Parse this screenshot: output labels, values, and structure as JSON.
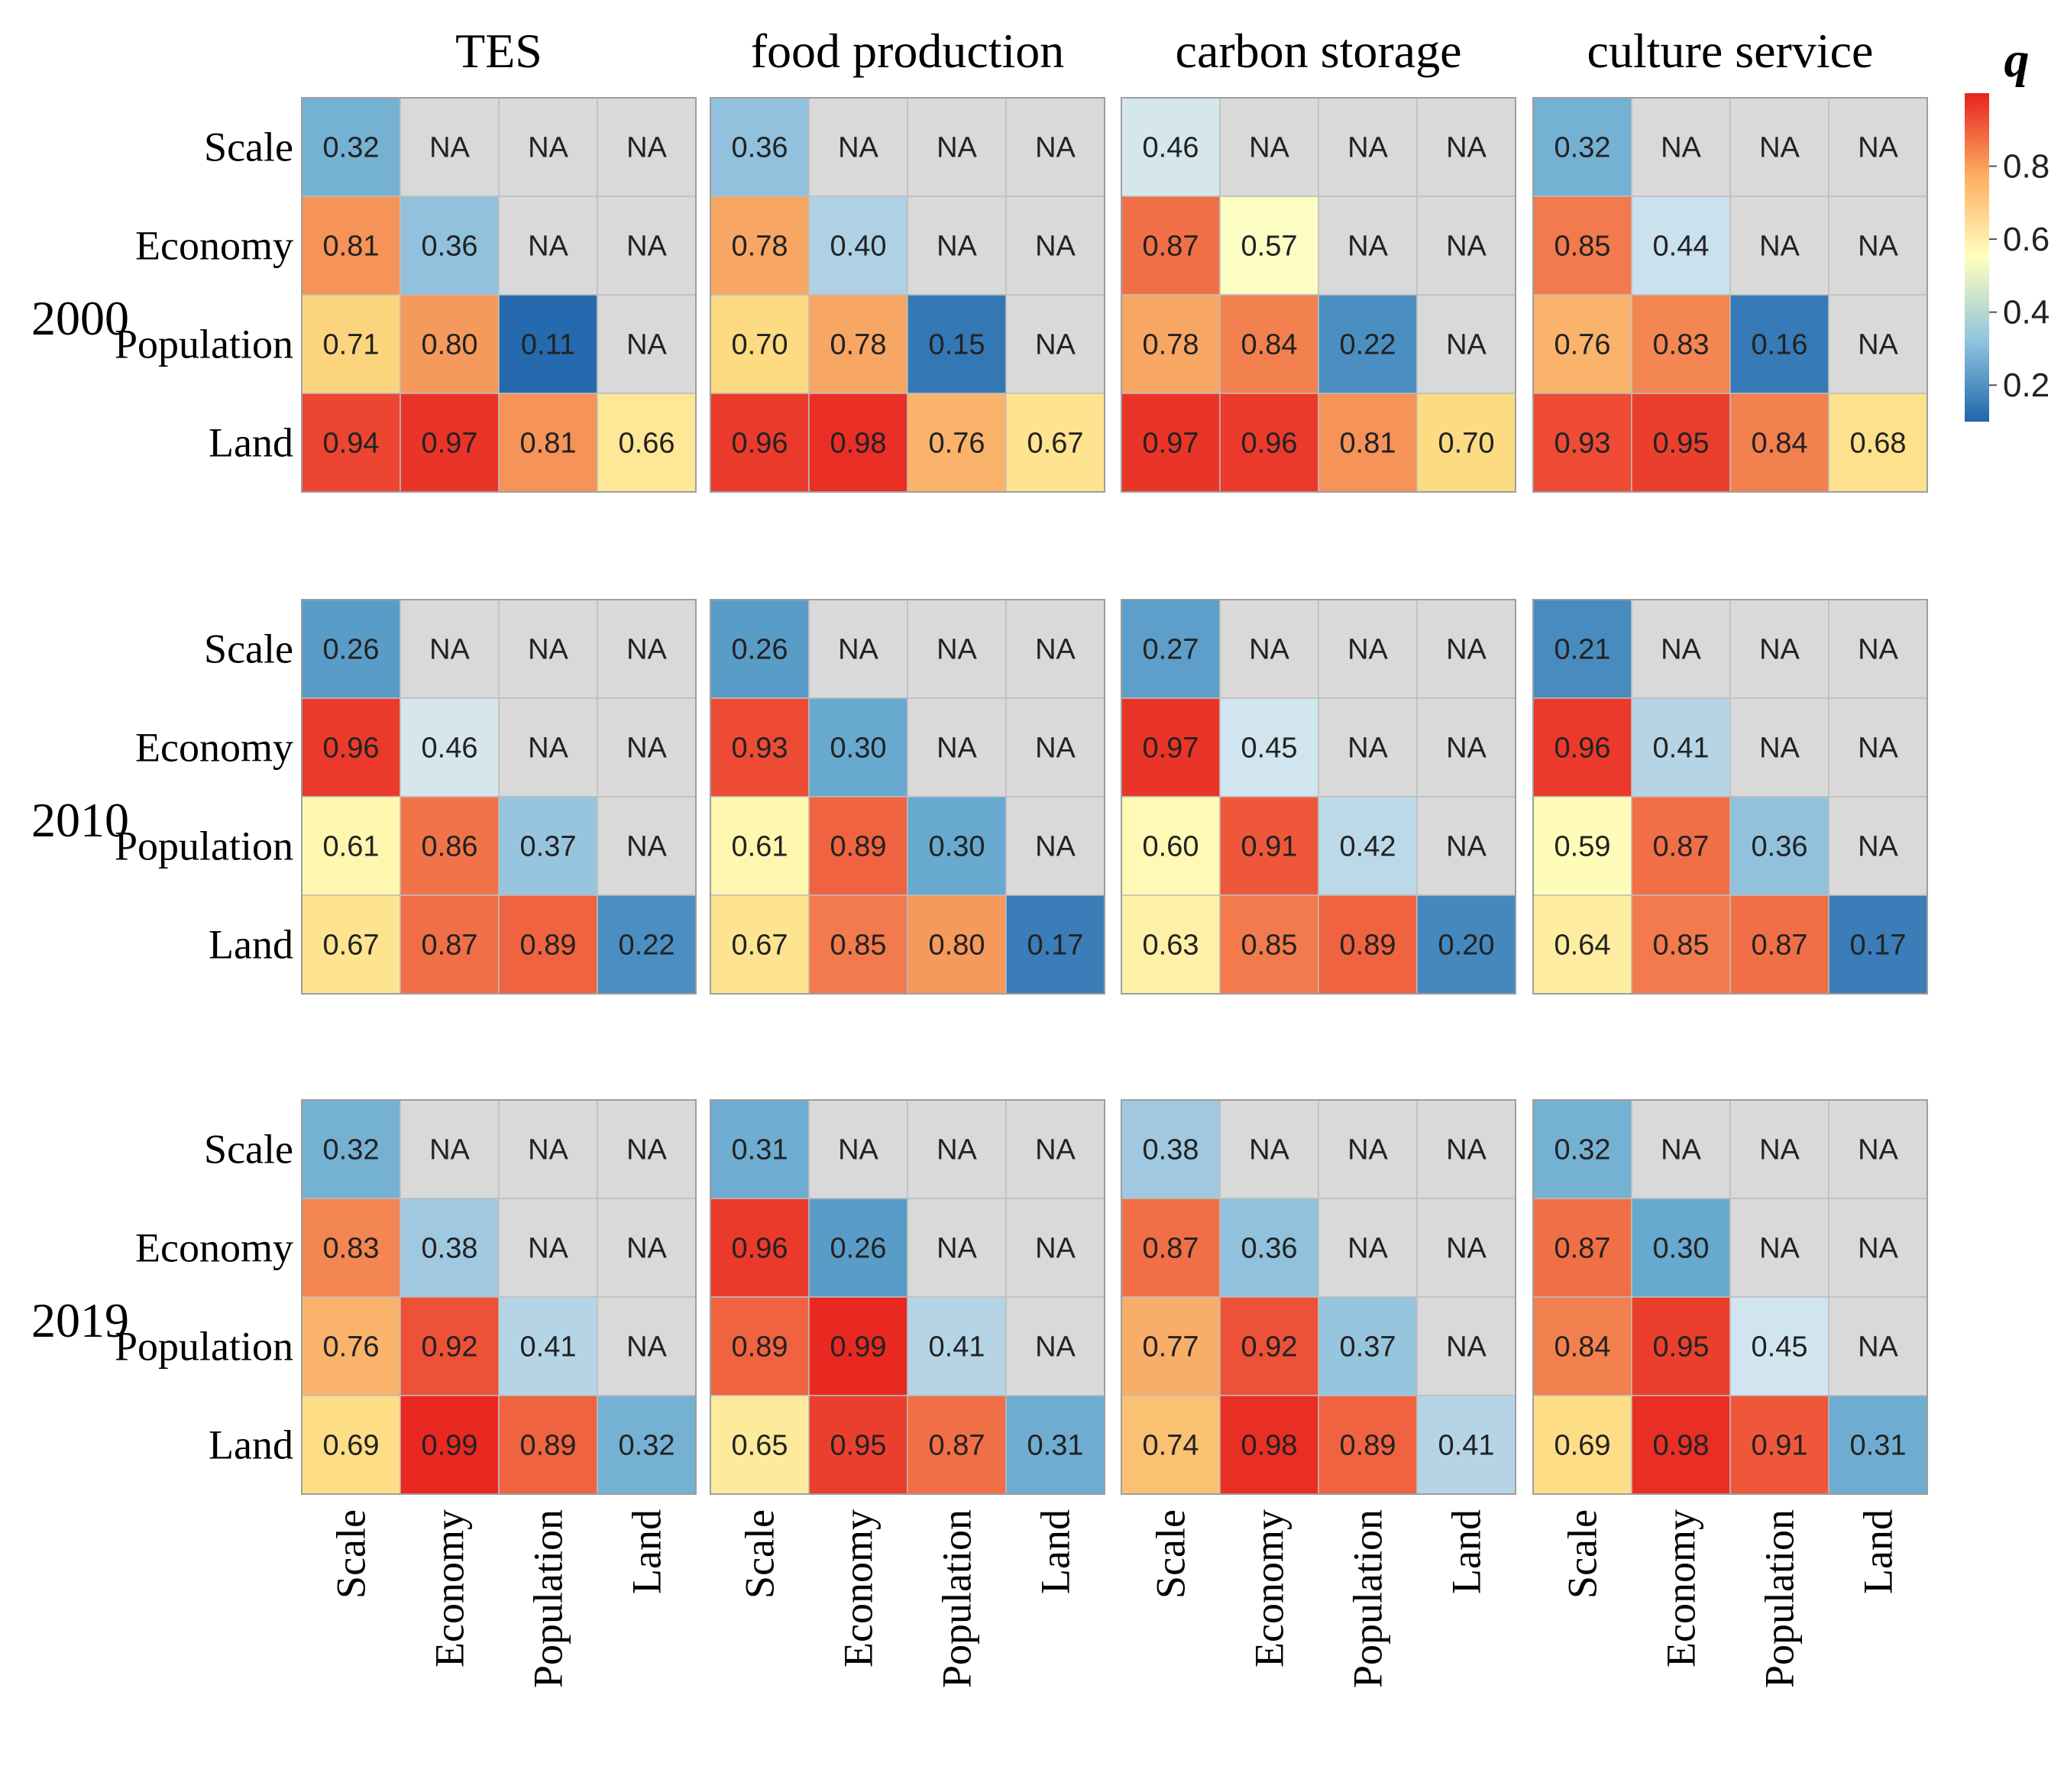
{
  "chart_data": {
    "type": "heatmap",
    "variables": [
      "Scale",
      "Economy",
      "Population",
      "Land"
    ],
    "services": [
      "TES",
      "food production",
      "carbon storage",
      "culture service"
    ],
    "years": [
      "2000",
      "2010",
      "2019"
    ],
    "na_label": "NA",
    "legend": {
      "title": "q",
      "ticks": [
        "0.8",
        "0.6",
        "0.4",
        "0.2"
      ],
      "tick_values": [
        0.8,
        0.6,
        0.4,
        0.2
      ],
      "range": [
        0.1,
        1.0
      ]
    },
    "colors": {
      "low": "#2166ac",
      "mid": "#ffffbf",
      "high": "#e8221f",
      "na": "#d9d9d9"
    },
    "panels": [
      {
        "year": "2000",
        "service": "TES",
        "values": [
          [
            "0.32",
            "NA",
            "NA",
            "NA"
          ],
          [
            "0.81",
            "0.36",
            "NA",
            "NA"
          ],
          [
            "0.71",
            "0.80",
            "0.11",
            "NA"
          ],
          [
            "0.94",
            "0.97",
            "0.81",
            "0.66"
          ]
        ]
      },
      {
        "year": "2000",
        "service": "food production",
        "values": [
          [
            "0.36",
            "NA",
            "NA",
            "NA"
          ],
          [
            "0.78",
            "0.40",
            "NA",
            "NA"
          ],
          [
            "0.70",
            "0.78",
            "0.15",
            "NA"
          ],
          [
            "0.96",
            "0.98",
            "0.76",
            "0.67"
          ]
        ]
      },
      {
        "year": "2000",
        "service": "carbon storage",
        "values": [
          [
            "0.46",
            "NA",
            "NA",
            "NA"
          ],
          [
            "0.87",
            "0.57",
            "NA",
            "NA"
          ],
          [
            "0.78",
            "0.84",
            "0.22",
            "NA"
          ],
          [
            "0.97",
            "0.96",
            "0.81",
            "0.70"
          ]
        ]
      },
      {
        "year": "2000",
        "service": "culture service",
        "values": [
          [
            "0.32",
            "NA",
            "NA",
            "NA"
          ],
          [
            "0.85",
            "0.44",
            "NA",
            "NA"
          ],
          [
            "0.76",
            "0.83",
            "0.16",
            "NA"
          ],
          [
            "0.93",
            "0.95",
            "0.84",
            "0.68"
          ]
        ]
      },
      {
        "year": "2010",
        "service": "TES",
        "values": [
          [
            "0.26",
            "NA",
            "NA",
            "NA"
          ],
          [
            "0.96",
            "0.46",
            "NA",
            "NA"
          ],
          [
            "0.61",
            "0.86",
            "0.37",
            "NA"
          ],
          [
            "0.67",
            "0.87",
            "0.89",
            "0.22"
          ]
        ]
      },
      {
        "year": "2010",
        "service": "food production",
        "values": [
          [
            "0.26",
            "NA",
            "NA",
            "NA"
          ],
          [
            "0.93",
            "0.30",
            "NA",
            "NA"
          ],
          [
            "0.61",
            "0.89",
            "0.30",
            "NA"
          ],
          [
            "0.67",
            "0.85",
            "0.80",
            "0.17"
          ]
        ]
      },
      {
        "year": "2010",
        "service": "carbon storage",
        "values": [
          [
            "0.27",
            "NA",
            "NA",
            "NA"
          ],
          [
            "0.97",
            "0.45",
            "NA",
            "NA"
          ],
          [
            "0.60",
            "0.91",
            "0.42",
            "NA"
          ],
          [
            "0.63",
            "0.85",
            "0.89",
            "0.20"
          ]
        ]
      },
      {
        "year": "2010",
        "service": "culture service",
        "values": [
          [
            "0.21",
            "NA",
            "NA",
            "NA"
          ],
          [
            "0.96",
            "0.41",
            "NA",
            "NA"
          ],
          [
            "0.59",
            "0.87",
            "0.36",
            "NA"
          ],
          [
            "0.64",
            "0.85",
            "0.87",
            "0.17"
          ]
        ]
      },
      {
        "year": "2019",
        "service": "TES",
        "values": [
          [
            "0.32",
            "NA",
            "NA",
            "NA"
          ],
          [
            "0.83",
            "0.38",
            "NA",
            "NA"
          ],
          [
            "0.76",
            "0.92",
            "0.41",
            "NA"
          ],
          [
            "0.69",
            "0.99",
            "0.89",
            "0.32"
          ]
        ]
      },
      {
        "year": "2019",
        "service": "food production",
        "values": [
          [
            "0.31",
            "NA",
            "NA",
            "NA"
          ],
          [
            "0.96",
            "0.26",
            "NA",
            "NA"
          ],
          [
            "0.89",
            "0.99",
            "0.41",
            "NA"
          ],
          [
            "0.65",
            "0.95",
            "0.87",
            "0.31"
          ]
        ]
      },
      {
        "year": "2019",
        "service": "carbon storage",
        "values": [
          [
            "0.38",
            "NA",
            "NA",
            "NA"
          ],
          [
            "0.87",
            "0.36",
            "NA",
            "NA"
          ],
          [
            "0.77",
            "0.92",
            "0.37",
            "NA"
          ],
          [
            "0.74",
            "0.98",
            "0.89",
            "0.41"
          ]
        ]
      },
      {
        "year": "2019",
        "service": "culture service",
        "values": [
          [
            "0.32",
            "NA",
            "NA",
            "NA"
          ],
          [
            "0.87",
            "0.30",
            "NA",
            "NA"
          ],
          [
            "0.84",
            "0.95",
            "0.45",
            "NA"
          ],
          [
            "0.69",
            "0.98",
            "0.91",
            "0.31"
          ]
        ]
      }
    ]
  }
}
